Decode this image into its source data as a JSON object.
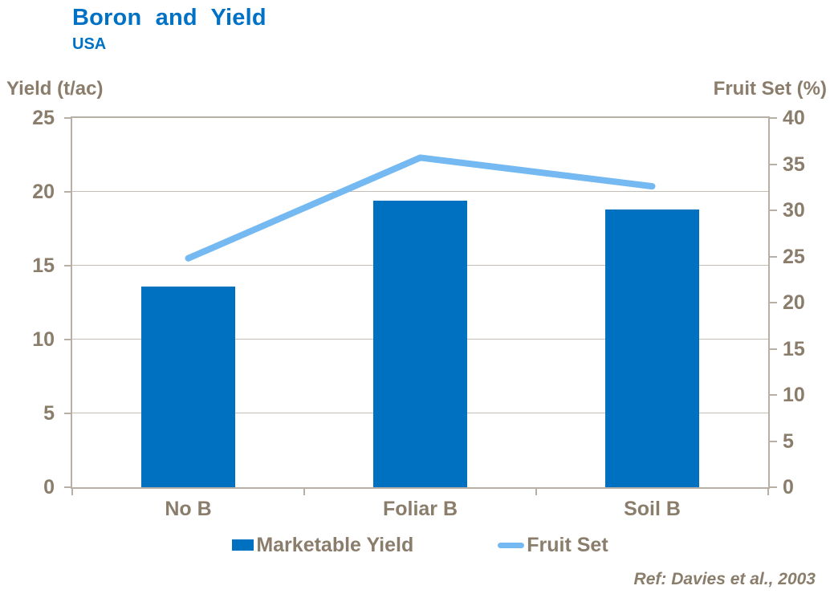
{
  "title": "Boron and Yield",
  "subtitle": "USA",
  "footer": "Ref: Davies et al., 2003",
  "colors": {
    "title_blue": "#0072C6",
    "bar_blue": "#0070C0",
    "line_blue": "#74B9F1",
    "axis_text": "#8B7D6B",
    "axis_line": "#B8B0A7",
    "grid_line": "#C6BDB4",
    "background": "#FFFFFF"
  },
  "chart_data": {
    "type": "bar",
    "subtype": "bar-and-line-dual-axis",
    "categories": [
      "No B",
      "Foliar B",
      "Soil B"
    ],
    "series": [
      {
        "name": "Marketable Yield",
        "type": "bar",
        "axis": "left",
        "values": [
          13.6,
          19.4,
          18.8
        ],
        "color": "#0070C0"
      },
      {
        "name": "Fruit Set",
        "type": "line",
        "axis": "right",
        "values": [
          24.8,
          35.7,
          32.6
        ],
        "color": "#74B9F1"
      }
    ],
    "left_axis": {
      "label": "Yield (t/ac)",
      "min": 0,
      "max": 25,
      "tick_step": 5
    },
    "right_axis": {
      "label": "Fruit Set (%)",
      "min": 0,
      "max": 40,
      "tick_step": 5
    },
    "grid": true,
    "legend_position": "bottom",
    "title": "Boron and Yield",
    "subtitle": "USA",
    "annotation": "Ref: Davies et al., 2003"
  }
}
